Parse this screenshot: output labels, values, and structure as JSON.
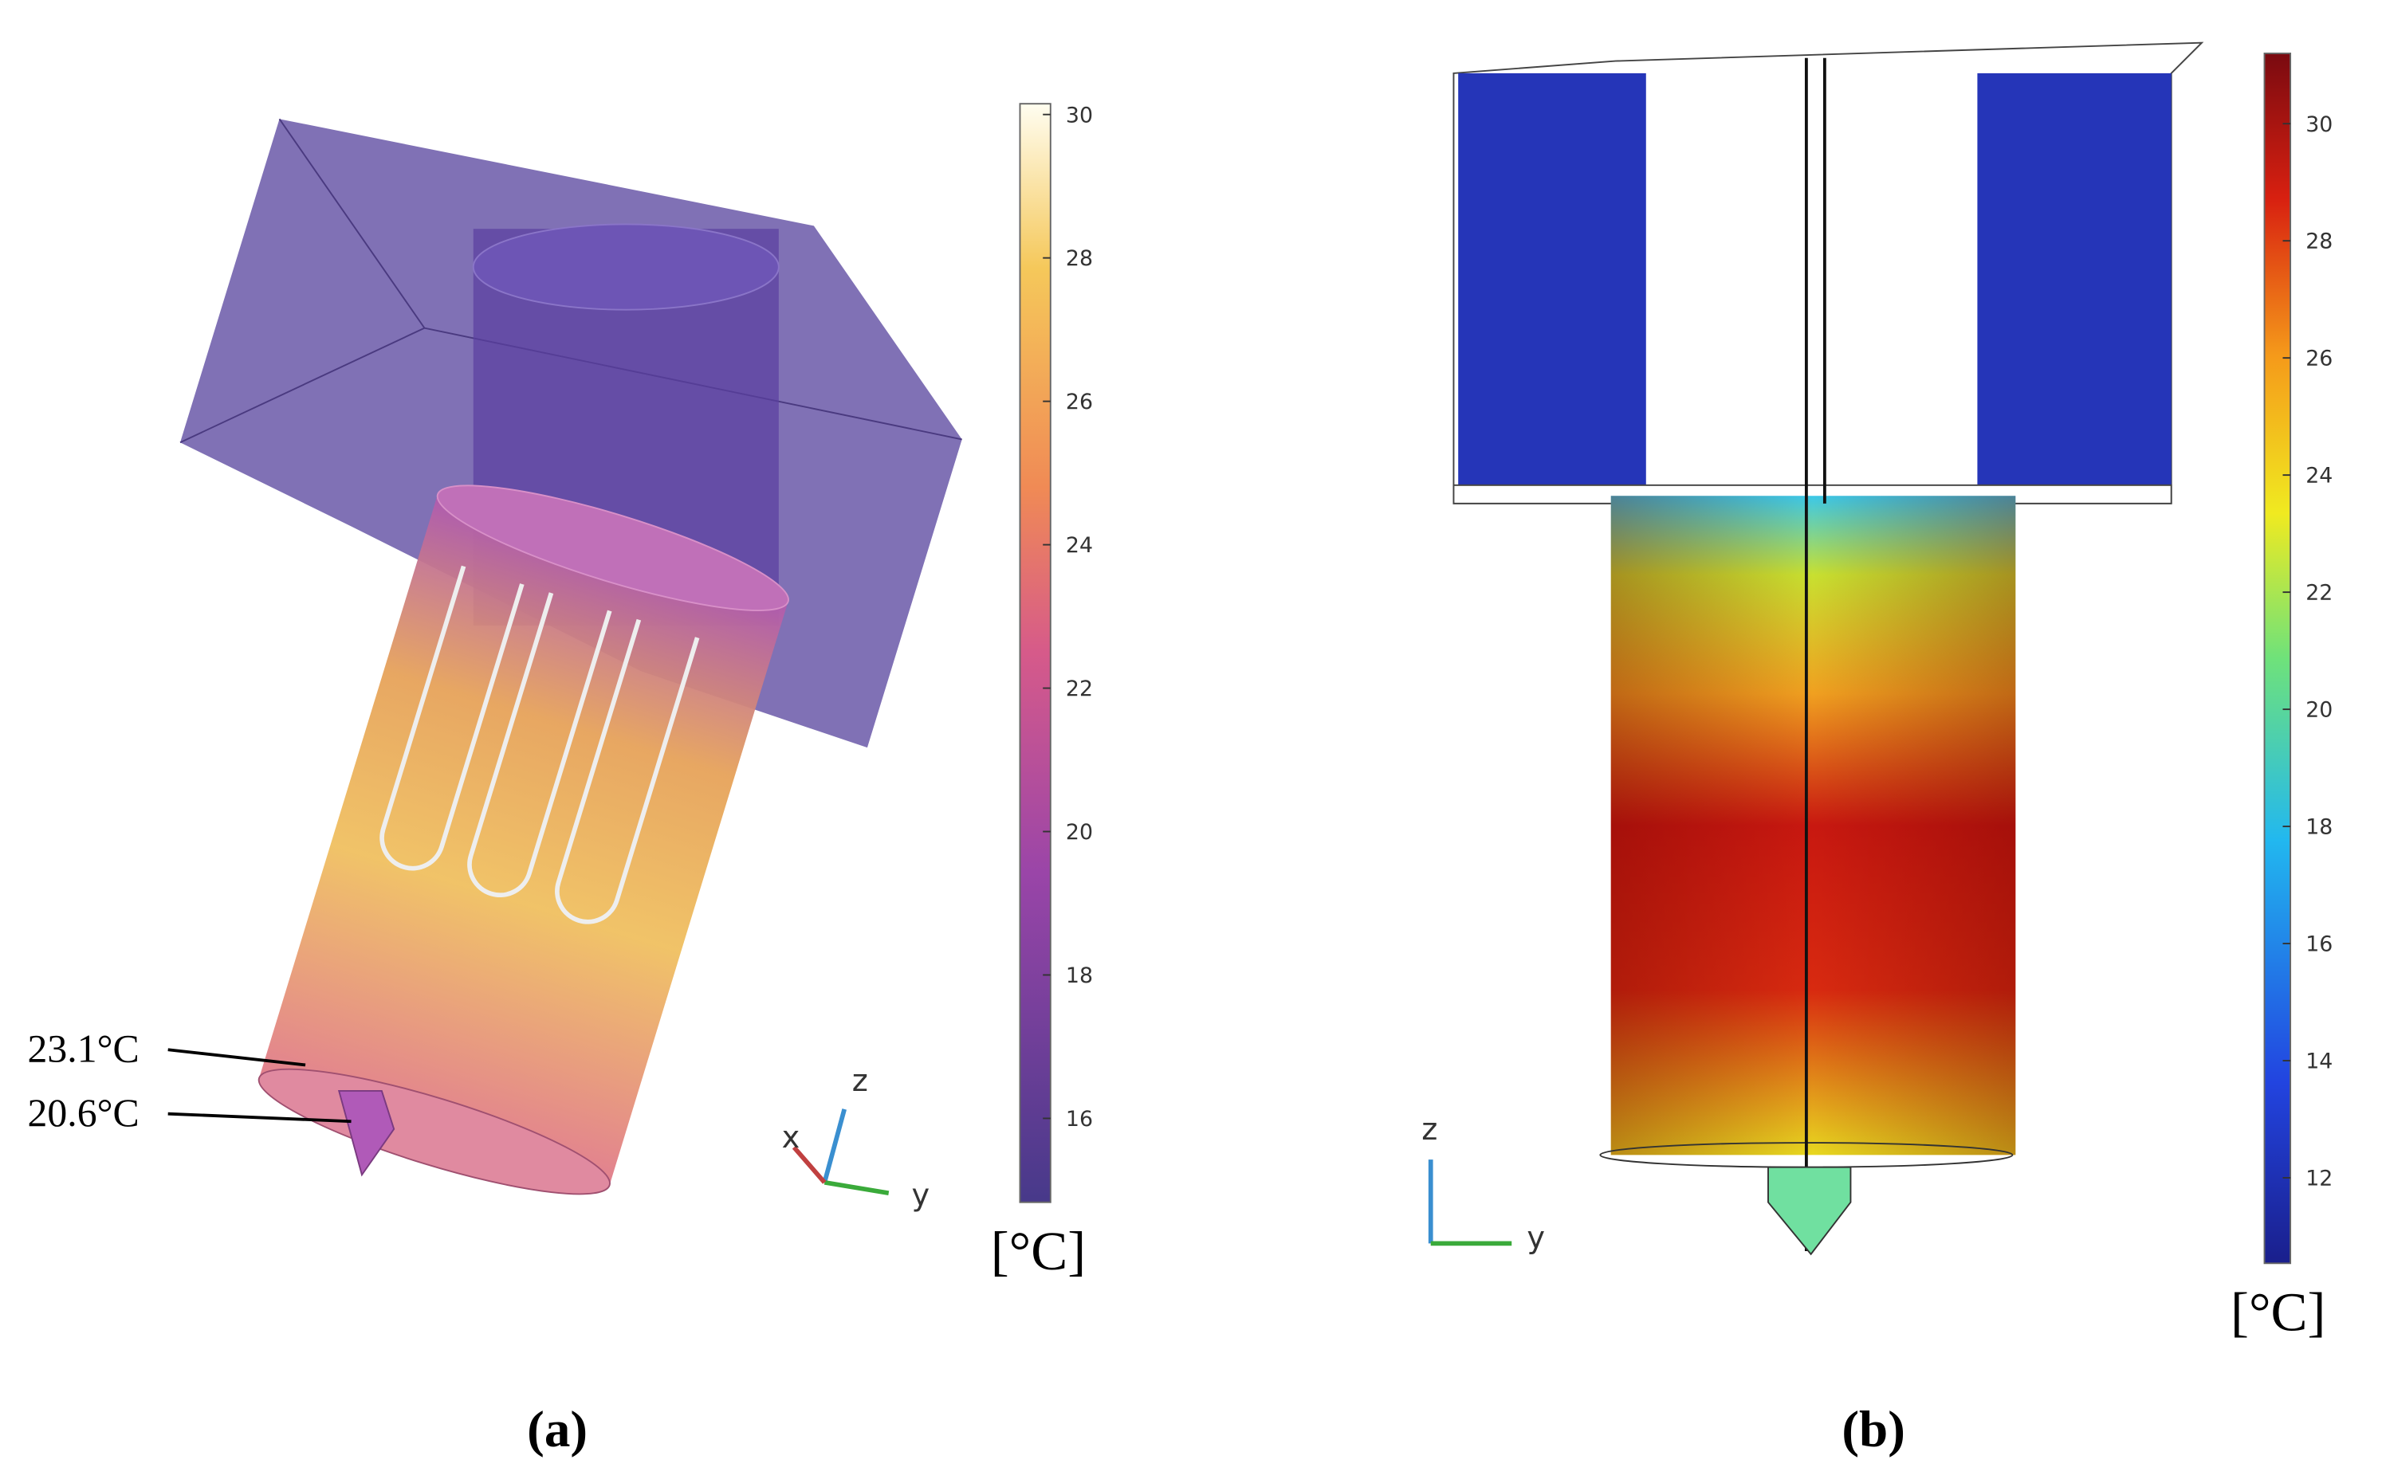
{
  "panels": [
    {
      "label": "(a)",
      "annotations": [
        "23.1°C",
        "20.6°C"
      ],
      "axes": [
        "z",
        "x",
        "y"
      ],
      "colorbar": {
        "lim": [
          14.83,
          30.15
        ],
        "ticks": [
          16,
          18,
          20,
          22,
          24,
          26,
          28,
          30
        ],
        "unit": "[°C]"
      }
    },
    {
      "label": "(b)",
      "axes": [
        "z",
        "y"
      ],
      "colorbar": {
        "lim": [
          10.54,
          31.2
        ],
        "ticks": [
          12,
          14,
          16,
          18,
          20,
          22,
          24,
          26,
          28,
          30
        ],
        "unit": "[°C]"
      }
    }
  ]
}
